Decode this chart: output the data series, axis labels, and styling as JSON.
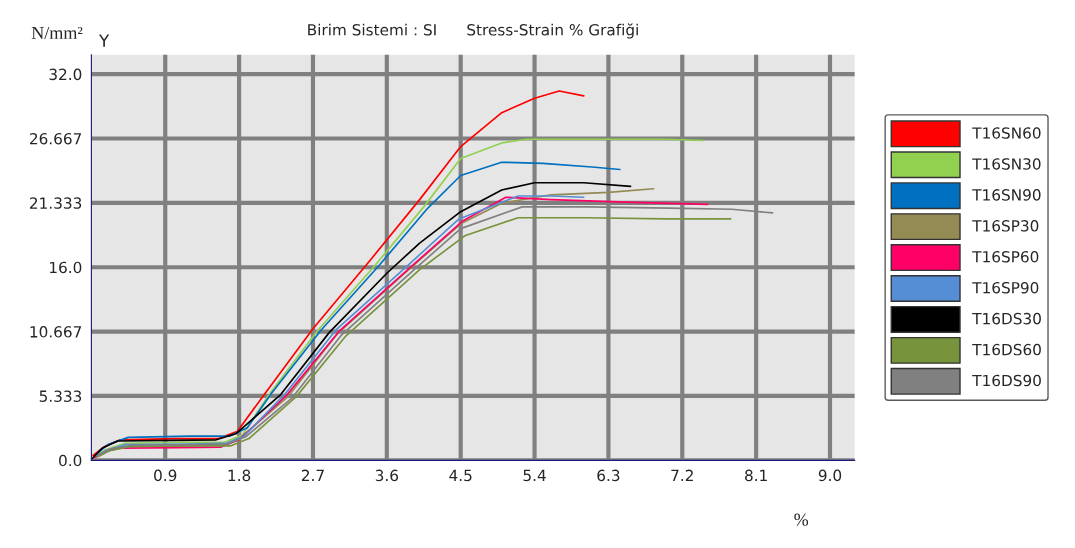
{
  "chart_data": {
    "type": "line",
    "title": "Birim Sistemi : SI      Stress-Strain % Grafiği",
    "xlabel": "%",
    "ylabel": "N/mm²",
    "annotations": [
      "Y"
    ],
    "xlim": [
      0,
      9.3
    ],
    "ylim": [
      0,
      33.6
    ],
    "xticks": [
      0.9,
      1.8,
      2.7,
      3.6,
      4.5,
      5.4,
      6.3,
      7.2,
      8.1,
      {
        "value": 9,
        "label": "9.0"
      }
    ],
    "yticks": [
      {
        "value": 0,
        "label": "0.0"
      },
      5.333,
      10.667,
      {
        "value": 16,
        "label": "16.0"
      },
      21.333,
      26.667,
      {
        "value": 32,
        "label": "32.0"
      }
    ],
    "grid": true,
    "legend": "right",
    "marker": "none",
    "line_style": "solid",
    "series": [
      {
        "name": "T16SN60",
        "color": "#ff0000",
        "x": [
          0.02,
          0.15,
          0.35,
          1.0,
          1.55,
          1.78,
          2.1,
          2.7,
          3.4,
          4.0,
          4.5,
          5.0,
          5.4,
          5.7,
          6.0
        ],
        "values": [
          0.4,
          1.1,
          1.7,
          1.8,
          1.8,
          2.4,
          5.4,
          10.9,
          16.6,
          21.6,
          26.0,
          28.8,
          30.0,
          30.6,
          30.2
        ]
      },
      {
        "name": "T16SN30",
        "color": "#92d050",
        "x": [
          0.04,
          0.18,
          0.4,
          1.1,
          1.62,
          1.84,
          2.15,
          2.75,
          3.45,
          4.05,
          4.5,
          5.0,
          5.3,
          6.0,
          7.0,
          7.45
        ],
        "values": [
          0.3,
          0.9,
          1.4,
          1.5,
          1.5,
          2.1,
          5.3,
          10.7,
          16.1,
          21.0,
          25.0,
          26.3,
          26.6,
          26.6,
          26.6,
          26.5
        ]
      },
      {
        "name": "T16SN90",
        "color": "#0070c0",
        "x": [
          0.06,
          0.2,
          0.45,
          1.2,
          1.68,
          1.9,
          2.2,
          2.8,
          3.5,
          4.1,
          4.5,
          5.0,
          5.5,
          6.1,
          6.44
        ],
        "values": [
          0.5,
          1.3,
          1.9,
          2.0,
          2.0,
          2.7,
          5.6,
          10.8,
          16.1,
          20.9,
          23.6,
          24.7,
          24.6,
          24.3,
          24.1
        ]
      },
      {
        "name": "T16SP30",
        "color": "#948a54",
        "x": [
          0.03,
          0.16,
          0.38,
          1.0,
          1.6,
          1.82,
          2.4,
          3.0,
          3.9,
          4.5,
          5.0,
          5.6,
          6.3,
          6.85
        ],
        "values": [
          0.2,
          0.7,
          1.1,
          1.2,
          1.25,
          1.9,
          5.3,
          10.5,
          16.0,
          19.6,
          21.3,
          22.0,
          22.2,
          22.5
        ]
      },
      {
        "name": "T16SP60",
        "color": "#ff0066",
        "x": [
          0.05,
          0.17,
          0.36,
          1.05,
          1.58,
          1.8,
          2.38,
          3.02,
          3.92,
          4.52,
          5.05,
          5.6,
          6.5,
          7.51
        ],
        "values": [
          0.25,
          0.75,
          1.0,
          1.05,
          1.1,
          1.7,
          5.4,
          10.7,
          16.2,
          19.8,
          21.8,
          21.6,
          21.4,
          21.2
        ]
      },
      {
        "name": "T16SP90",
        "color": "#558ed5",
        "x": [
          0.07,
          0.19,
          0.42,
          1.15,
          1.64,
          1.86,
          2.36,
          2.98,
          3.88,
          4.48,
          5.2,
          5.6,
          6.0
        ],
        "values": [
          0.35,
          0.85,
          1.3,
          1.35,
          1.4,
          2.0,
          5.5,
          10.8,
          16.3,
          20.0,
          21.9,
          21.9,
          21.8
        ]
      },
      {
        "name": "T16DS30",
        "color": "#000000",
        "x": [
          0.01,
          0.13,
          0.32,
          0.95,
          1.52,
          1.76,
          2.3,
          2.9,
          3.6,
          4.0,
          4.5,
          5.0,
          5.4,
          6.0,
          6.57
        ],
        "values": [
          0.15,
          1.0,
          1.6,
          1.65,
          1.7,
          2.2,
          5.4,
          10.6,
          15.5,
          18.0,
          20.6,
          22.4,
          23.0,
          23.0,
          22.7
        ]
      },
      {
        "name": "T16DS60",
        "color": "#77933c",
        "x": [
          0.08,
          0.22,
          0.48,
          1.25,
          1.7,
          1.92,
          2.5,
          3.1,
          4.0,
          4.55,
          5.2,
          6.0,
          7.0,
          7.79
        ],
        "values": [
          0.3,
          0.8,
          1.15,
          1.2,
          1.2,
          1.8,
          5.3,
          10.3,
          15.8,
          18.6,
          20.1,
          20.1,
          20.0,
          20.0
        ]
      },
      {
        "name": "T16DS90",
        "color": "#808080",
        "x": [
          0.09,
          0.24,
          0.5,
          1.3,
          1.66,
          1.88,
          2.45,
          3.05,
          3.95,
          4.5,
          5.25,
          6.05,
          7.05,
          7.8,
          8.3
        ],
        "values": [
          0.45,
          0.95,
          1.25,
          1.3,
          1.35,
          1.95,
          5.2,
          10.4,
          15.9,
          19.2,
          21.0,
          21.0,
          20.9,
          20.8,
          20.5
        ]
      }
    ]
  }
}
